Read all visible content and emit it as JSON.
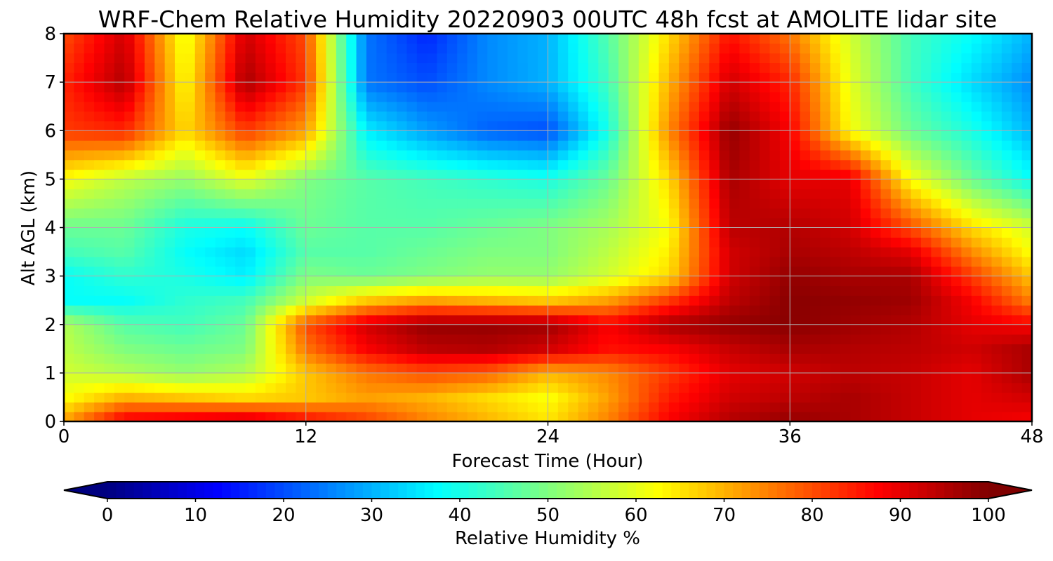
{
  "chart_data": {
    "type": "heatmap",
    "title": "WRF-Chem Relative Humidity 20220903 00UTC 48h fcst at AMOLITE lidar site",
    "xlabel": "Forecast Time (Hour)",
    "ylabel": "Alt AGL (km)",
    "xlim": [
      0,
      48
    ],
    "ylim": [
      0,
      8
    ],
    "x_ticks": [
      0,
      12,
      24,
      36,
      48
    ],
    "y_ticks": [
      0,
      1,
      2,
      3,
      4,
      5,
      6,
      7,
      8
    ],
    "grid": true,
    "x": [
      0,
      3,
      6,
      9,
      12,
      15,
      18,
      21,
      24,
      27,
      30,
      33,
      36,
      39,
      42,
      45,
      48
    ],
    "y": [
      0,
      0.5,
      1,
      1.5,
      2,
      2.5,
      3,
      3.5,
      4,
      5,
      6,
      7,
      8
    ],
    "z": [
      [
        72,
        90,
        92,
        94,
        88,
        82,
        75,
        70,
        65,
        75,
        88,
        95,
        98,
        96,
        93,
        90,
        88
      ],
      [
        62,
        70,
        68,
        66,
        68,
        72,
        70,
        66,
        62,
        72,
        85,
        92,
        94,
        96,
        93,
        90,
        92
      ],
      [
        58,
        55,
        52,
        55,
        68,
        76,
        80,
        78,
        70,
        74,
        82,
        90,
        92,
        94,
        93,
        90,
        96
      ],
      [
        56,
        50,
        48,
        50,
        76,
        88,
        94,
        95,
        92,
        86,
        88,
        93,
        96,
        95,
        94,
        92,
        96
      ],
      [
        55,
        46,
        44,
        48,
        80,
        92,
        98,
        98,
        97,
        88,
        96,
        98,
        99,
        97,
        95,
        90,
        88
      ],
      [
        38,
        38,
        42,
        44,
        58,
        68,
        72,
        70,
        68,
        72,
        82,
        94,
        99,
        98,
        97,
        88,
        75
      ],
      [
        38,
        42,
        40,
        36,
        50,
        48,
        50,
        52,
        52,
        58,
        66,
        92,
        98,
        96,
        96,
        82,
        68
      ],
      [
        44,
        46,
        38,
        34,
        46,
        46,
        48,
        50,
        50,
        56,
        64,
        92,
        96,
        94,
        90,
        74,
        62
      ],
      [
        48,
        48,
        40,
        38,
        48,
        46,
        46,
        48,
        50,
        54,
        62,
        94,
        95,
        92,
        80,
        66,
        58
      ],
      [
        62,
        56,
        52,
        60,
        50,
        46,
        44,
        42,
        40,
        48,
        66,
        96,
        90,
        90,
        62,
        48,
        38
      ],
      [
        82,
        84,
        66,
        82,
        72,
        36,
        28,
        22,
        20,
        40,
        74,
        98,
        88,
        62,
        48,
        40,
        30
      ],
      [
        84,
        95,
        62,
        96,
        82,
        24,
        20,
        26,
        30,
        44,
        70,
        92,
        84,
        60,
        44,
        34,
        26
      ],
      [
        80,
        92,
        60,
        92,
        80,
        24,
        16,
        26,
        30,
        46,
        66,
        86,
        76,
        58,
        44,
        38,
        30
      ]
    ],
    "colorbar": {
      "label": "Relative Humidity %",
      "min": 0,
      "max": 100,
      "ticks": [
        0,
        10,
        20,
        30,
        40,
        50,
        60,
        70,
        80,
        90,
        100
      ],
      "extend": "both",
      "colormap": "jet"
    }
  }
}
